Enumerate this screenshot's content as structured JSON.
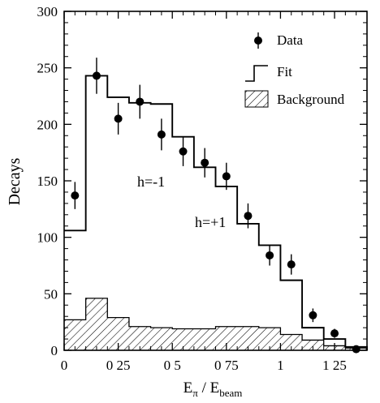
{
  "chart_data": {
    "type": "histogram",
    "xlabel": {
      "main": "E",
      "sub1": "π",
      "mid": " / E",
      "sub2": "beam"
    },
    "ylabel": "Decays",
    "xlim": [
      0,
      1.4
    ],
    "ylim": [
      0,
      300
    ],
    "xticks": [
      {
        "value": 0,
        "label": "0"
      },
      {
        "value": 0.25,
        "label": "0 25"
      },
      {
        "value": 0.5,
        "label": "0 5"
      },
      {
        "value": 0.75,
        "label": "0 75"
      },
      {
        "value": 1,
        "label": "1"
      },
      {
        "value": 1.25,
        "label": "1 25"
      }
    ],
    "yticks": [
      {
        "value": 0,
        "label": "0"
      },
      {
        "value": 50,
        "label": "50"
      },
      {
        "value": 100,
        "label": "100"
      },
      {
        "value": 150,
        "label": "150"
      },
      {
        "value": 200,
        "label": "200"
      },
      {
        "value": 250,
        "label": "250"
      },
      {
        "value": 300,
        "label": "300"
      }
    ],
    "legend": {
      "placement": "top-right",
      "items": [
        {
          "key": "data",
          "label": "Data"
        },
        {
          "key": "fit",
          "label": "Fit"
        },
        {
          "key": "background",
          "label": "Background"
        }
      ]
    },
    "annotations": [
      "h=-1",
      "h=+1"
    ],
    "bin_edges": [
      0,
      0.1,
      0.2,
      0.3,
      0.4,
      0.5,
      0.6,
      0.7,
      0.8,
      0.9,
      1.0,
      1.1,
      1.2,
      1.3,
      1.4
    ],
    "series": [
      {
        "name": "Data",
        "kind": "points",
        "x": [
          0.05,
          0.15,
          0.25,
          0.35,
          0.45,
          0.55,
          0.65,
          0.75,
          0.85,
          0.95,
          1.05,
          1.15,
          1.25,
          1.35
        ],
        "y": [
          137,
          243,
          205,
          220,
          191,
          176,
          166,
          154,
          119,
          84,
          76,
          31,
          15,
          1
        ],
        "err": [
          12,
          16,
          14,
          15,
          14,
          13,
          13,
          12,
          11,
          9,
          9,
          6,
          4,
          1
        ]
      },
      {
        "name": "Fit",
        "kind": "step",
        "values": [
          106,
          243,
          224,
          219,
          218,
          189,
          162,
          145,
          112,
          93,
          62,
          20,
          10,
          3
        ]
      },
      {
        "name": "Background",
        "kind": "hatched",
        "values": [
          27,
          46,
          29,
          21,
          20,
          19,
          19,
          21,
          21,
          20,
          14,
          9,
          4,
          2
        ]
      }
    ]
  }
}
